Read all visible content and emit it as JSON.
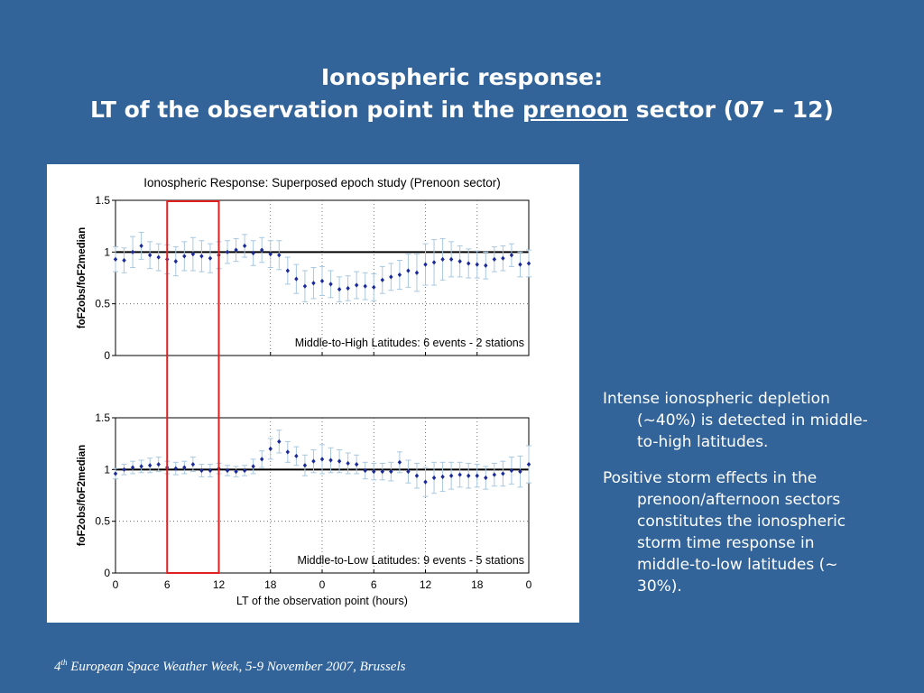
{
  "slide": {
    "title_line1": "Ionospheric response:",
    "title_line2_pre": "LT of the observation point in the ",
    "title_line2_underlined": "prenoon",
    "title_line2_post": " sector (07 – 12)",
    "bullets": [
      "Intense ionospheric depletion (~40%) is detected in middle-to-high latitudes.",
      "Positive storm effects in the prenoon/afternoon sectors constitutes the ionospheric storm time response in middle-to-low latitudes (~ 30%)."
    ],
    "footer_num": "4",
    "footer_sup": "th",
    "footer_rest": " European Space Weather Week, 5-9 November 2007, Brussels"
  },
  "chart_data": [
    {
      "type": "scatter",
      "title": "Ionospheric Response: Superposed epoch study (Prenoon sector)",
      "annotation": "Middle-to-High Latitudes: 6 events - 2 stations",
      "ylabel": "foF2obs/foF2median",
      "xlabel": "",
      "xlim": [
        0,
        48
      ],
      "ylim": [
        0,
        1.5
      ],
      "yticks": [
        "0",
        "0.5",
        "1",
        "1.5"
      ],
      "reference_line": 1,
      "highlight_x": [
        6,
        12
      ],
      "highlight_color": "#e02020",
      "marker_color": "#1a2a9a",
      "errorbar_color": "#a8c8e0",
      "x": [
        0,
        1,
        2,
        3,
        4,
        5,
        6,
        7,
        8,
        9,
        10,
        11,
        12,
        13,
        14,
        15,
        16,
        17,
        18,
        19,
        20,
        21,
        22,
        23,
        24,
        25,
        26,
        27,
        28,
        29,
        30,
        31,
        32,
        33,
        34,
        35,
        36,
        37,
        38,
        39,
        40,
        41,
        42,
        43,
        44,
        45,
        46,
        47,
        48
      ],
      "y": [
        0.93,
        0.92,
        1.0,
        1.06,
        0.97,
        0.95,
        0.93,
        0.91,
        0.96,
        0.98,
        0.96,
        0.94,
        0.97,
        1.0,
        1.02,
        1.06,
        0.99,
        1.02,
        0.98,
        0.97,
        0.82,
        0.74,
        0.67,
        0.7,
        0.72,
        0.69,
        0.64,
        0.65,
        0.68,
        0.67,
        0.66,
        0.73,
        0.76,
        0.78,
        0.82,
        0.8,
        0.88,
        0.9,
        0.93,
        0.93,
        0.91,
        0.89,
        0.88,
        0.87,
        0.93,
        0.94,
        0.97,
        0.88,
        0.89
      ],
      "err": [
        0.12,
        0.12,
        0.15,
        0.13,
        0.13,
        0.13,
        0.14,
        0.14,
        0.14,
        0.16,
        0.15,
        0.14,
        0.13,
        0.11,
        0.11,
        0.11,
        0.12,
        0.12,
        0.13,
        0.14,
        0.13,
        0.14,
        0.15,
        0.15,
        0.14,
        0.13,
        0.12,
        0.12,
        0.13,
        0.13,
        0.13,
        0.13,
        0.13,
        0.14,
        0.16,
        0.18,
        0.2,
        0.22,
        0.2,
        0.17,
        0.15,
        0.14,
        0.13,
        0.13,
        0.12,
        0.12,
        0.11,
        0.12,
        0.13
      ]
    },
    {
      "type": "scatter",
      "annotation": "Middle-to-Low Latitudes: 9 events - 5 stations",
      "ylabel": "foF2obs/foF2median",
      "xlabel": "LT of the observation point (hours)",
      "xlim": [
        0,
        48
      ],
      "ylim": [
        0,
        1.5
      ],
      "xticks": [
        "0",
        "6",
        "12",
        "18",
        "0",
        "6",
        "12",
        "18",
        "0"
      ],
      "yticks": [
        "0",
        "0.5",
        "1",
        "1.5"
      ],
      "reference_line": 1,
      "highlight_x": [
        6,
        12
      ],
      "highlight_color": "#e02020",
      "marker_color": "#1a2a9a",
      "errorbar_color": "#a8c8e0",
      "x": [
        0,
        1,
        2,
        3,
        4,
        5,
        6,
        7,
        8,
        9,
        10,
        11,
        12,
        13,
        14,
        15,
        16,
        17,
        18,
        19,
        20,
        21,
        22,
        23,
        24,
        25,
        26,
        27,
        28,
        29,
        30,
        31,
        32,
        33,
        34,
        35,
        36,
        37,
        38,
        39,
        40,
        41,
        42,
        43,
        44,
        45,
        46,
        47,
        48
      ],
      "y": [
        0.96,
        1.0,
        1.02,
        1.03,
        1.04,
        1.05,
        1.02,
        1.01,
        1.02,
        1.05,
        0.99,
        0.99,
        1.01,
        0.99,
        0.98,
        0.99,
        1.03,
        1.1,
        1.2,
        1.27,
        1.17,
        1.13,
        1.04,
        1.08,
        1.1,
        1.09,
        1.08,
        1.06,
        1.05,
        0.99,
        0.98,
        0.98,
        0.98,
        1.07,
        0.98,
        0.94,
        0.88,
        0.92,
        0.93,
        0.94,
        0.95,
        0.94,
        0.94,
        0.92,
        0.95,
        0.96,
        0.99,
        0.98,
        1.05
      ],
      "err": [
        0.05,
        0.05,
        0.06,
        0.06,
        0.07,
        0.07,
        0.06,
        0.06,
        0.06,
        0.07,
        0.06,
        0.06,
        0.05,
        0.05,
        0.05,
        0.05,
        0.07,
        0.08,
        0.1,
        0.11,
        0.1,
        0.09,
        0.1,
        0.11,
        0.14,
        0.12,
        0.11,
        0.1,
        0.09,
        0.08,
        0.08,
        0.08,
        0.09,
        0.1,
        0.11,
        0.12,
        0.14,
        0.15,
        0.14,
        0.13,
        0.12,
        0.12,
        0.11,
        0.11,
        0.11,
        0.12,
        0.13,
        0.15,
        0.18
      ]
    }
  ]
}
